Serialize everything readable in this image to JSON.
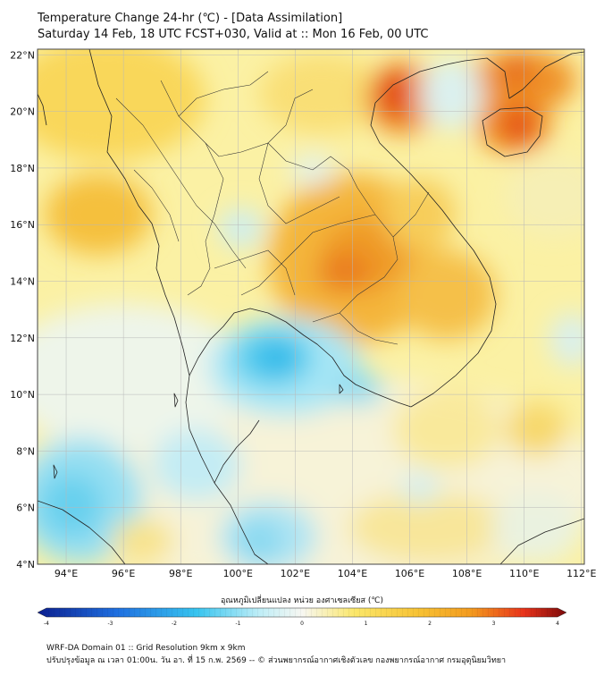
{
  "title": {
    "line1": "Temperature Change 24-hr (℃) - [Data Assimilation]",
    "line2": "Saturday 14 Feb, 18 UTC FCST+030, Valid at :: Mon 16 Feb, 00 UTC"
  },
  "map": {
    "lat_labels": [
      "22°N",
      "20°N",
      "18°N",
      "16°N",
      "14°N",
      "12°N",
      "10°N",
      "8°N",
      "6°N",
      "4°N"
    ],
    "lon_labels": [
      "94°E",
      "96°E",
      "98°E",
      "100°E",
      "102°E",
      "104°E",
      "106°E",
      "108°E",
      "110°E",
      "112°E"
    ],
    "lat_range": [
      4,
      22.2
    ],
    "lon_range": [
      93,
      112.1
    ],
    "gridlines": true
  },
  "colorbar": {
    "title": "อุณหภูมิเปลี่ยนแปลง หน่วย องศาเซลเซียส (℃)",
    "range": [
      -4,
      4
    ],
    "ticks": [
      "-4",
      "-3",
      "-2",
      "-1",
      "0",
      "1",
      "2",
      "3",
      "4"
    ],
    "colors": {
      "min": "#0b1f8f",
      "cold": "#1f6fe0",
      "cool": "#37c4ef",
      "neutral": "#f7f7f2",
      "warm": "#fbe76a",
      "hot": "#f39a1e",
      "hotter": "#e8321a",
      "max": "#7b0a0a"
    }
  },
  "footer": {
    "line1": "WRF-DA Domain 01 :: Grid Resolution 9km x 9km",
    "line2": "ปรับปรุงข้อมูล ณ เวลา 01:00น. วัน อา. ที่ 15 ก.พ. 2569 -- © ส่วนพยากรณ์อากาศเชิงตัวเลข กองพยากรณ์อากาศ กรมอุตุนิยมวิทยา"
  }
}
